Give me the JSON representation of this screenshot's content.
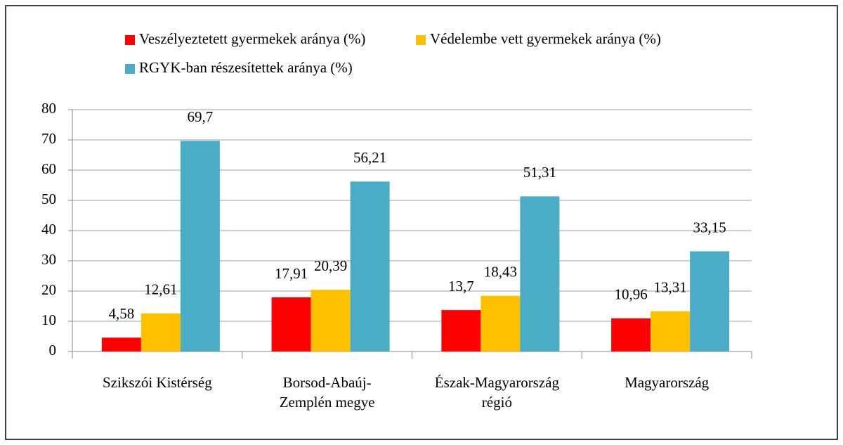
{
  "chart_data": {
    "type": "bar",
    "categories": [
      "Szikszói Kistérség",
      "Borsod-Abaúj-Zemplén megye",
      "Észak-Magyarország régió",
      "Magyarország"
    ],
    "series": [
      {
        "name": "Veszélyeztetett gyermekek aránya (%)",
        "color": "#ff0000",
        "values": [
          4.58,
          17.91,
          13.7,
          10.96
        ],
        "value_labels": [
          "4,58",
          "17,91",
          "13,7",
          "10,96"
        ]
      },
      {
        "name": "Védelembe vett gyermekek aránya (%)",
        "color": "#ffc000",
        "values": [
          12.61,
          20.39,
          18.43,
          13.31
        ],
        "value_labels": [
          "12,61",
          "20,39",
          "18,43",
          "13,31"
        ]
      },
      {
        "name": "RGYK-ban részesítettek aránya (%)",
        "color": "#4bacc6",
        "values": [
          69.7,
          56.21,
          51.31,
          33.15
        ],
        "value_labels": [
          "69,7",
          "56,21",
          "51,31",
          "33,15"
        ]
      }
    ],
    "ylim": [
      0,
      80
    ],
    "yticks": [
      0,
      10,
      20,
      30,
      40,
      50,
      60,
      70,
      80
    ],
    "grid": true,
    "legend": "top"
  }
}
